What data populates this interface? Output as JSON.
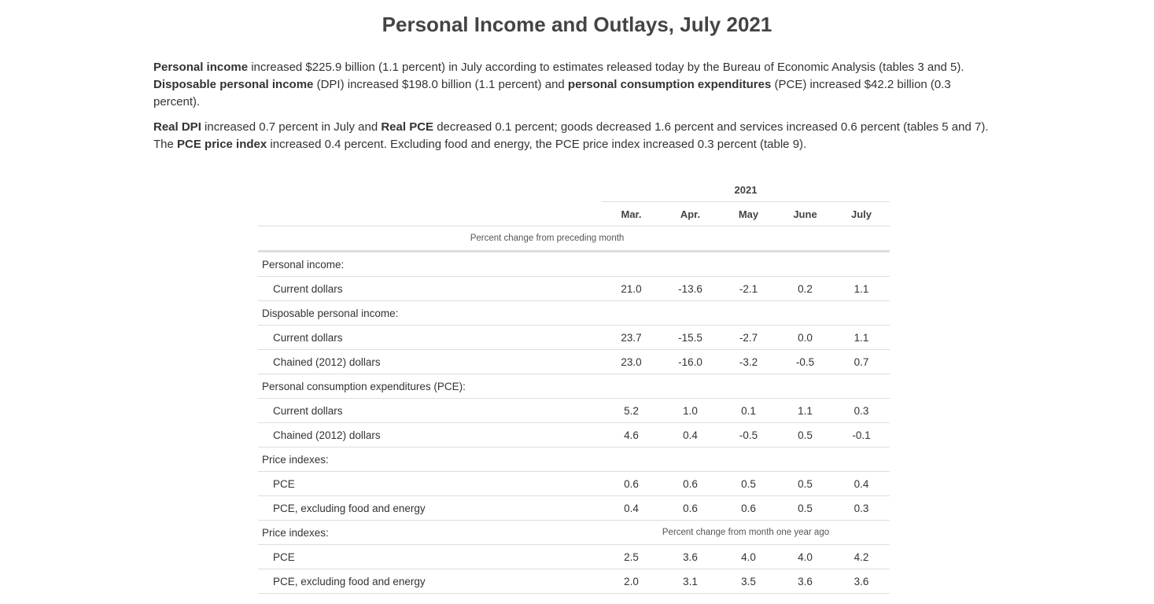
{
  "header": {
    "title": "Personal Income and Outlays, July 2021"
  },
  "paragraphs": [
    [
      {
        "text": "Personal income",
        "bold": true
      },
      {
        "text": " increased $225.9 billion (1.1 percent) in July according to estimates released today by the Bureau of Economic Analysis (tables 3 and 5). "
      },
      {
        "text": "Disposable personal income",
        "bold": true
      },
      {
        "text": " (DPI) increased $198.0 billion (1.1 percent) and "
      },
      {
        "text": "personal consumption expenditures",
        "bold": true
      },
      {
        "text": " (PCE) increased $42.2 billion (0.3 percent)."
      }
    ],
    [
      {
        "text": "Real DPI",
        "bold": true
      },
      {
        "text": " increased 0.7 percent in July and "
      },
      {
        "text": "Real PCE",
        "bold": true
      },
      {
        "text": " decreased 0.1 percent; goods decreased 1.6 percent and services increased 0.6 percent (tables 5 and 7). The "
      },
      {
        "text": "PCE price index",
        "bold": true
      },
      {
        "text": " increased 0.4 percent. Excluding food and energy, the PCE price index increased 0.3 percent (table 9)."
      }
    ]
  ],
  "table": {
    "group_header": "2021",
    "columns": [
      "Mar.",
      "Apr.",
      "May",
      "June",
      "July"
    ],
    "subheader": "Percent change from preceding month",
    "rows": [
      {
        "label": "Personal income:"
      },
      {
        "label": "Current dollars",
        "values": [
          "21.0",
          "-13.6",
          "-2.1",
          "0.2",
          "1.1"
        ]
      },
      {
        "label": "Disposable personal income:"
      },
      {
        "label": "Current dollars",
        "values": [
          "23.7",
          "-15.5",
          "-2.7",
          "0.0",
          "1.1"
        ]
      },
      {
        "label": "Chained (2012) dollars",
        "values": [
          "23.0",
          "-16.0",
          "-3.2",
          "-0.5",
          "0.7"
        ]
      },
      {
        "label": "Personal consumption expenditures (PCE):"
      },
      {
        "label": "Current dollars",
        "values": [
          "5.2",
          "1.0",
          "0.1",
          "1.1",
          "0.3"
        ]
      },
      {
        "label": "Chained (2012) dollars",
        "values": [
          "4.6",
          "0.4",
          "-0.5",
          "0.5",
          "-0.1"
        ]
      },
      {
        "label": "Price indexes:"
      },
      {
        "label": "PCE",
        "values": [
          "0.6",
          "0.6",
          "0.5",
          "0.5",
          "0.4"
        ]
      },
      {
        "label": "PCE, excluding food and energy",
        "values": [
          "0.4",
          "0.6",
          "0.6",
          "0.5",
          "0.3"
        ]
      },
      {
        "label": "Price indexes:",
        "note": "Percent change from month one year ago"
      },
      {
        "label": "PCE",
        "values": [
          "2.5",
          "3.6",
          "4.0",
          "4.0",
          "4.2"
        ]
      },
      {
        "label": "PCE, excluding food and energy",
        "values": [
          "2.0",
          "3.1",
          "3.5",
          "3.6",
          "3.6"
        ]
      }
    ]
  }
}
